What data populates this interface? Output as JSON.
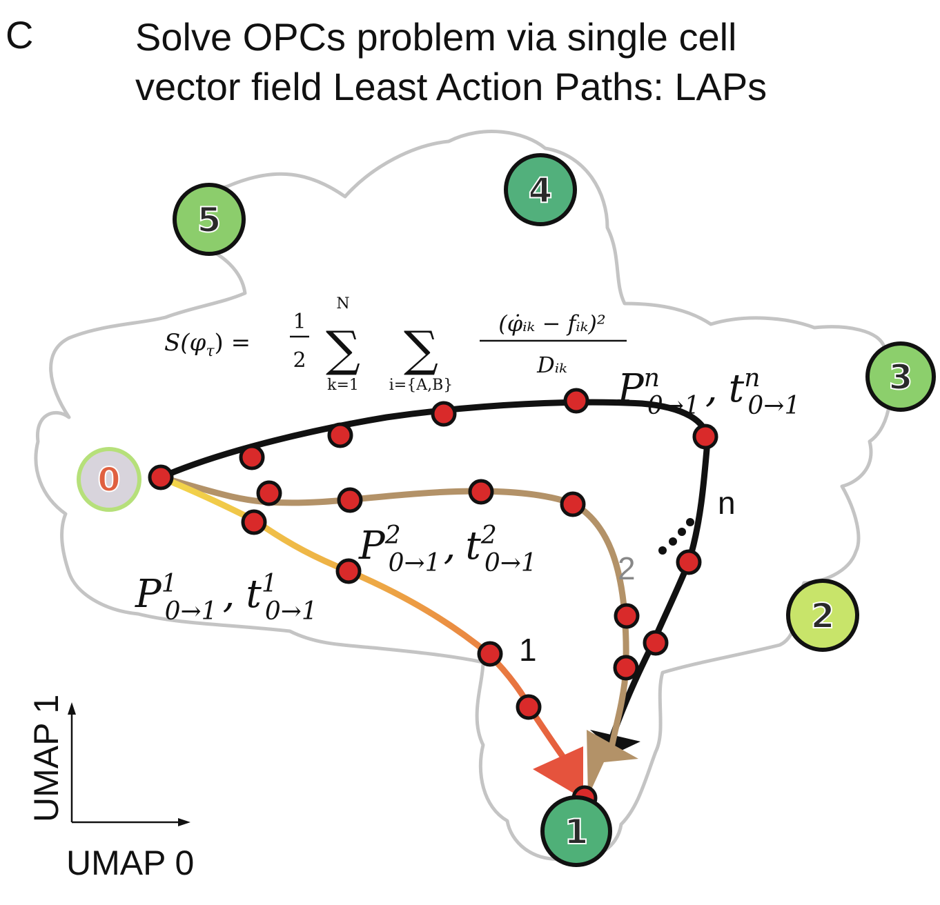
{
  "panel_letter": "C",
  "title": {
    "line1": "Solve OPCs problem via single cell",
    "line2": "vector field Least Action Paths: LAPs"
  },
  "nodes": [
    {
      "label": "0",
      "color": "#d8d4dc",
      "ring": "#b6e07a",
      "text_color": "#e06040"
    },
    {
      "label": "1",
      "color": "#4fb078",
      "ring": "#111111",
      "text_color": "#2a2a2a"
    },
    {
      "label": "2",
      "color": "#c8e46a",
      "ring": "#111111",
      "text_color": "#2a2a2a"
    },
    {
      "label": "3",
      "color": "#8ccf6c",
      "ring": "#111111",
      "text_color": "#2a2a2a"
    },
    {
      "label": "4",
      "color": "#52b07c",
      "ring": "#111111",
      "text_color": "#2a2a2a"
    },
    {
      "label": "5",
      "color": "#8ccd6c",
      "ring": "#111111",
      "text_color": "#2a2a2a"
    }
  ],
  "equation": {
    "lhs": "S(φ",
    "lhs_sub": "τ",
    "lhs_close": ") =",
    "half_num": "1",
    "half_den": "2",
    "sum1_top": "N",
    "sum1_bottom": "k=1",
    "sum2_bottom": "i={A,B}",
    "sigma": "∑",
    "frac_num": "(φ̇ᵢₖ − fᵢₖ)²",
    "frac_den": "Dᵢₖ"
  },
  "path_labels": {
    "p1": {
      "P": "P",
      "sup": "1",
      "sub": "0→1",
      "sep": ",",
      "t": "t",
      "tsup": "1",
      "tsub": "0→1"
    },
    "p2": {
      "P": "P",
      "sup": "2",
      "sub": "0→1",
      "sep": ",",
      "t": "t",
      "tsup": "2",
      "tsub": "0→1"
    },
    "pn": {
      "P": "P",
      "sup": "n",
      "sub": "0→1",
      "sep": ",",
      "t": "t",
      "tsup": "n",
      "tsub": "0→1"
    }
  },
  "path_numbers": {
    "one": "1",
    "two": "2",
    "n": "n"
  },
  "axes": {
    "y_label": "UMAP 1",
    "x_label": "UMAP 0"
  },
  "colors": {
    "outline": "#c4c4c4",
    "path_n": "#111111",
    "path_2": "#b39268",
    "path_1_start": "#f2d54a",
    "path_1_end": "#e5533d",
    "point": "#d92a2a",
    "point_stroke": "#111111"
  }
}
